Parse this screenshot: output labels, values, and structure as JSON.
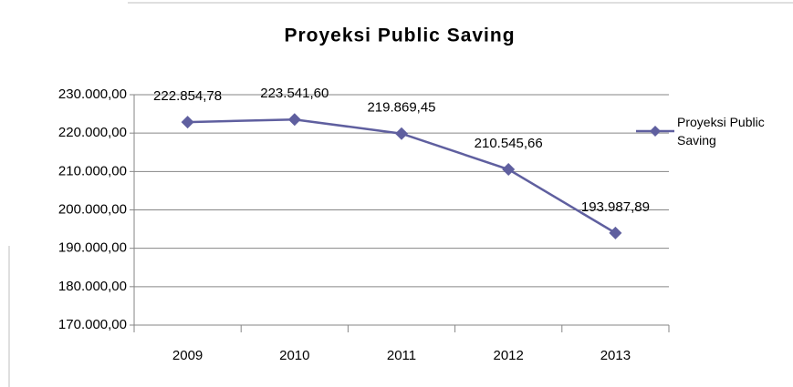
{
  "chart_data": {
    "type": "line",
    "title": "Proyeksi Public Saving",
    "categories": [
      "2009",
      "2010",
      "2011",
      "2012",
      "2013"
    ],
    "series": [
      {
        "name": "Proyeksi Public Saving",
        "color": "#5f5f9f",
        "values": [
          222854.78,
          223541.6,
          219869.45,
          210545.66,
          193987.89
        ],
        "value_labels": [
          "222.854,78",
          "223.541,60",
          "219.869,45",
          "210.545,66",
          "193.987,89"
        ]
      }
    ],
    "ylim": [
      170000,
      230000
    ],
    "yticks": [
      {
        "value": 170000,
        "label": "170.000,00"
      },
      {
        "value": 180000,
        "label": "180.000,00"
      },
      {
        "value": 190000,
        "label": "190.000,00"
      },
      {
        "value": 200000,
        "label": "200.000,00"
      },
      {
        "value": 210000,
        "label": "210.000,00"
      },
      {
        "value": 220000,
        "label": "220.000,00"
      },
      {
        "value": 230000,
        "label": "230.000,00"
      }
    ],
    "grid": true,
    "legend": "right"
  }
}
